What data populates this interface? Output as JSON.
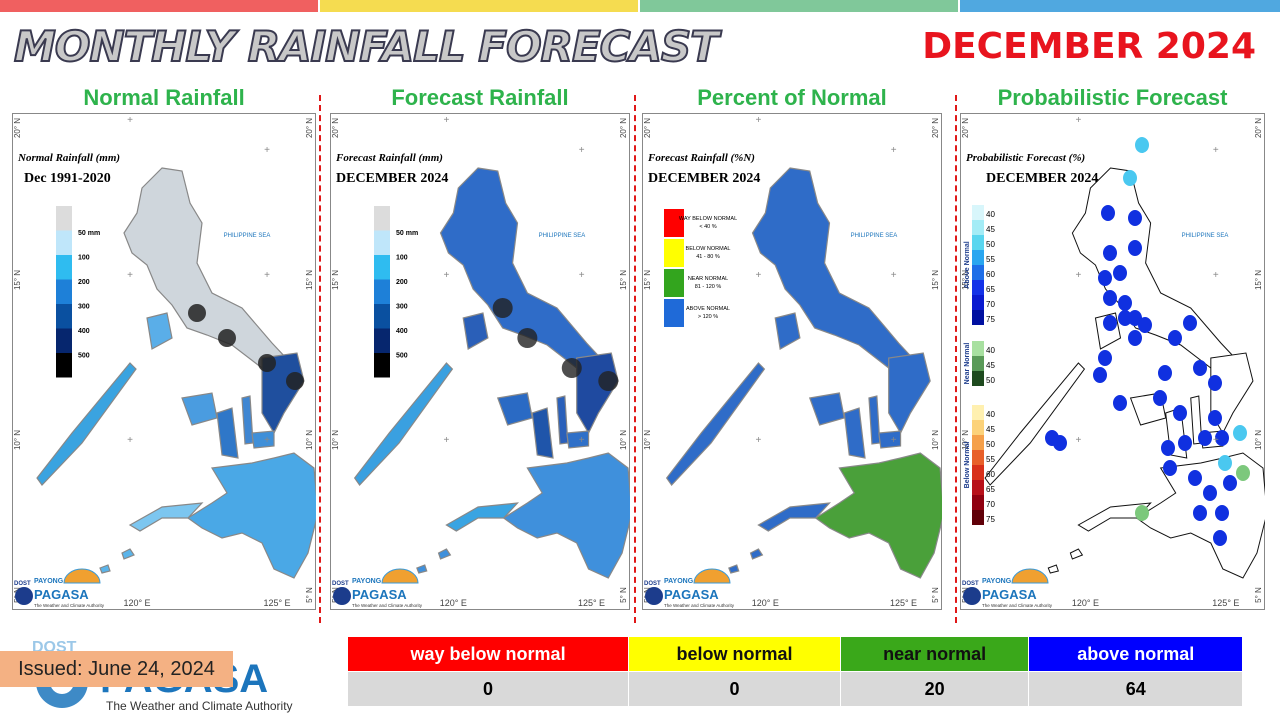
{
  "header": {
    "title": "MONTHLY RAINFALL FORECAST",
    "period": "DECEMBER 2024"
  },
  "panels": [
    {
      "title": "Normal Rainfall",
      "map_title": "Normal Rainfall (mm)",
      "map_subtitle": "Dec 1991-2020",
      "legend": [
        "50 mm",
        "100",
        "200",
        "300",
        "400",
        "500"
      ]
    },
    {
      "title": "Forecast Rainfall",
      "map_title": "Forecast Rainfall (mm)",
      "map_subtitle": "DECEMBER 2024",
      "legend": [
        "50 mm",
        "100",
        "200",
        "300",
        "400",
        "500"
      ]
    },
    {
      "title": "Percent of Normal",
      "map_title": "Forecast Rainfall (%N)",
      "map_subtitle": "DECEMBER 2024",
      "legend": [
        {
          "label": "WAY BELOW NORMAL",
          "range": "< 40 %"
        },
        {
          "label": "BELOW NORMAL",
          "range": "41 - 80 %"
        },
        {
          "label": "NEAR NORMAL",
          "range": "81 - 120 %"
        },
        {
          "label": "ABOVE NORMAL",
          "range": "> 120 %"
        }
      ]
    },
    {
      "title": "Probabilistic Forecast",
      "map_title": "Probabilistic Forecast (%)",
      "map_subtitle": "DECEMBER 2024",
      "legend": [
        {
          "name": "Above Normal",
          "levels": [
            40,
            45,
            50,
            55,
            60,
            65,
            70,
            75
          ]
        },
        {
          "name": "Near Normal",
          "levels": [
            40,
            45,
            50
          ]
        },
        {
          "name": "Below Normal",
          "levels": [
            40,
            45,
            50,
            55,
            60,
            65,
            70,
            75
          ]
        }
      ]
    }
  ],
  "map_labels": {
    "sea": "PHILIPPINE SEA",
    "latitudes": [
      "20° N",
      "15° N",
      "10° N",
      "5° N"
    ],
    "longitudes": [
      "120° E",
      "125° E"
    ]
  },
  "logo": {
    "dost": "DOST",
    "payong": "PAYONG",
    "name": "PAGASA",
    "tagline": "The Weather and Climate Authority"
  },
  "issued": "Issued: June 24, 2024",
  "table": {
    "headers": [
      "way below normal",
      "below normal",
      "near normal",
      "above normal"
    ],
    "rows": [
      [
        0,
        0,
        20,
        64
      ]
    ]
  }
}
